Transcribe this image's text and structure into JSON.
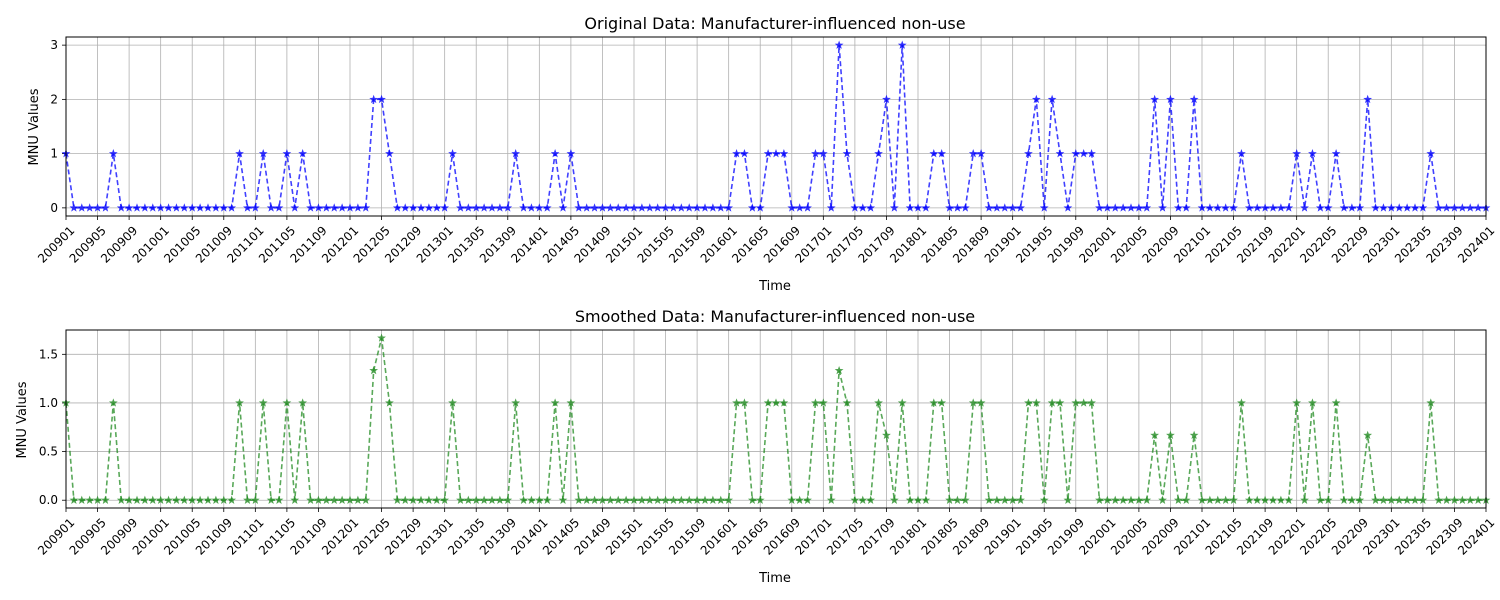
{
  "chart_data": [
    {
      "type": "line",
      "title": "Original Data: Manufacturer-influenced non-use",
      "xlabel": "Time",
      "ylabel": "MNU Values",
      "ylim": [
        -0.15,
        3.15
      ],
      "yticks": [
        0,
        1,
        2,
        3
      ],
      "grid": true,
      "color": "#0000ff",
      "marker": "star",
      "linestyle": "dashed",
      "nonzero": {
        "200901": 1,
        "200907": 1,
        "201011": 1,
        "201102": 1,
        "201105": 1,
        "201107": 1,
        "201204": 2,
        "201205": 2,
        "201206": 1,
        "201302": 1,
        "201310": 1,
        "201403": 1,
        "201405": 1,
        "201602": 1,
        "201603": 1,
        "201606": 1,
        "201607": 1,
        "201608": 1,
        "201612": 1,
        "201701": 1,
        "201703": 3,
        "201704": 1,
        "201708": 1,
        "201709": 2,
        "201711": 3,
        "201803": 1,
        "201804": 1,
        "201808": 1,
        "201809": 1,
        "201903": 1,
        "201904": 2,
        "201906": 2,
        "201907": 1,
        "201909": 1,
        "201910": 1,
        "201911": 1,
        "202007": 2,
        "202009": 2,
        "202012": 2,
        "202106": 1,
        "202201": 1,
        "202203": 1,
        "202206": 1,
        "202210": 2,
        "202306": 1
      }
    },
    {
      "type": "line",
      "title": "Smoothed Data: Manufacturer-influenced non-use",
      "xlabel": "Time",
      "ylabel": "MNU Values",
      "ylim": [
        -0.08,
        1.75
      ],
      "yticks": [
        0.0,
        0.5,
        1.0,
        1.5
      ],
      "grid": true,
      "color": "#228b22",
      "marker": "star",
      "linestyle": "dashed",
      "nonzero": {
        "200901": 1,
        "200907": 1,
        "201011": 1,
        "201102": 1,
        "201105": 1,
        "201107": 1,
        "201204": 1.333,
        "201205": 1.667,
        "201206": 1,
        "201302": 1,
        "201310": 1,
        "201403": 1,
        "201405": 1,
        "201602": 1,
        "201603": 1,
        "201606": 1,
        "201607": 1,
        "201608": 1,
        "201612": 1,
        "201701": 1,
        "201703": 1.333,
        "201704": 1,
        "201708": 1,
        "201709": 0.667,
        "201711": 1,
        "201803": 1,
        "201804": 1,
        "201808": 1,
        "201809": 1,
        "201903": 1,
        "201904": 1,
        "201906": 1,
        "201907": 1,
        "201909": 1,
        "201910": 1,
        "201911": 1,
        "202007": 0.667,
        "202009": 0.667,
        "202012": 0.667,
        "202106": 1,
        "202201": 1,
        "202203": 1,
        "202206": 1,
        "202210": 0.667,
        "202306": 1
      }
    }
  ],
  "x_periods": {
    "start": "200901",
    "end": "202401",
    "step_months": 1
  },
  "x_tick_labels": [
    "200901",
    "200905",
    "200909",
    "201001",
    "201005",
    "201009",
    "201101",
    "201105",
    "201109",
    "201201",
    "201205",
    "201209",
    "201301",
    "201305",
    "201309",
    "201401",
    "201405",
    "201409",
    "201501",
    "201505",
    "201509",
    "201601",
    "201605",
    "201609",
    "201701",
    "201705",
    "201709",
    "201801",
    "201805",
    "201809",
    "201901",
    "201905",
    "201909",
    "202001",
    "202005",
    "202009",
    "202101",
    "202105",
    "202109",
    "202201",
    "202205",
    "202209",
    "202301",
    "202305",
    "202309",
    "202401"
  ]
}
